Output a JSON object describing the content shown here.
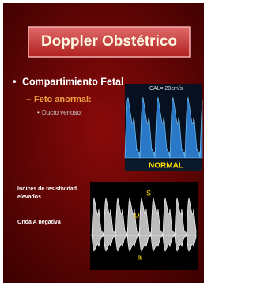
{
  "slide": {
    "title": "Doppler Obstétrico",
    "bullets": [
      {
        "text": "Compartimiento Fetal",
        "level": 1
      },
      {
        "text": "Feto anormal:",
        "level": 2
      },
      {
        "text": "Ducto venoso:",
        "level": 3
      }
    ],
    "notes": [
      "Indices de resistividad",
      "elevados",
      "Onda A  negativa"
    ],
    "image_top": {
      "header": "CAL= 20cm/s",
      "label": "NORMAL"
    },
    "image_bottom": {
      "labels": [
        "S",
        "D",
        "a"
      ]
    }
  }
}
